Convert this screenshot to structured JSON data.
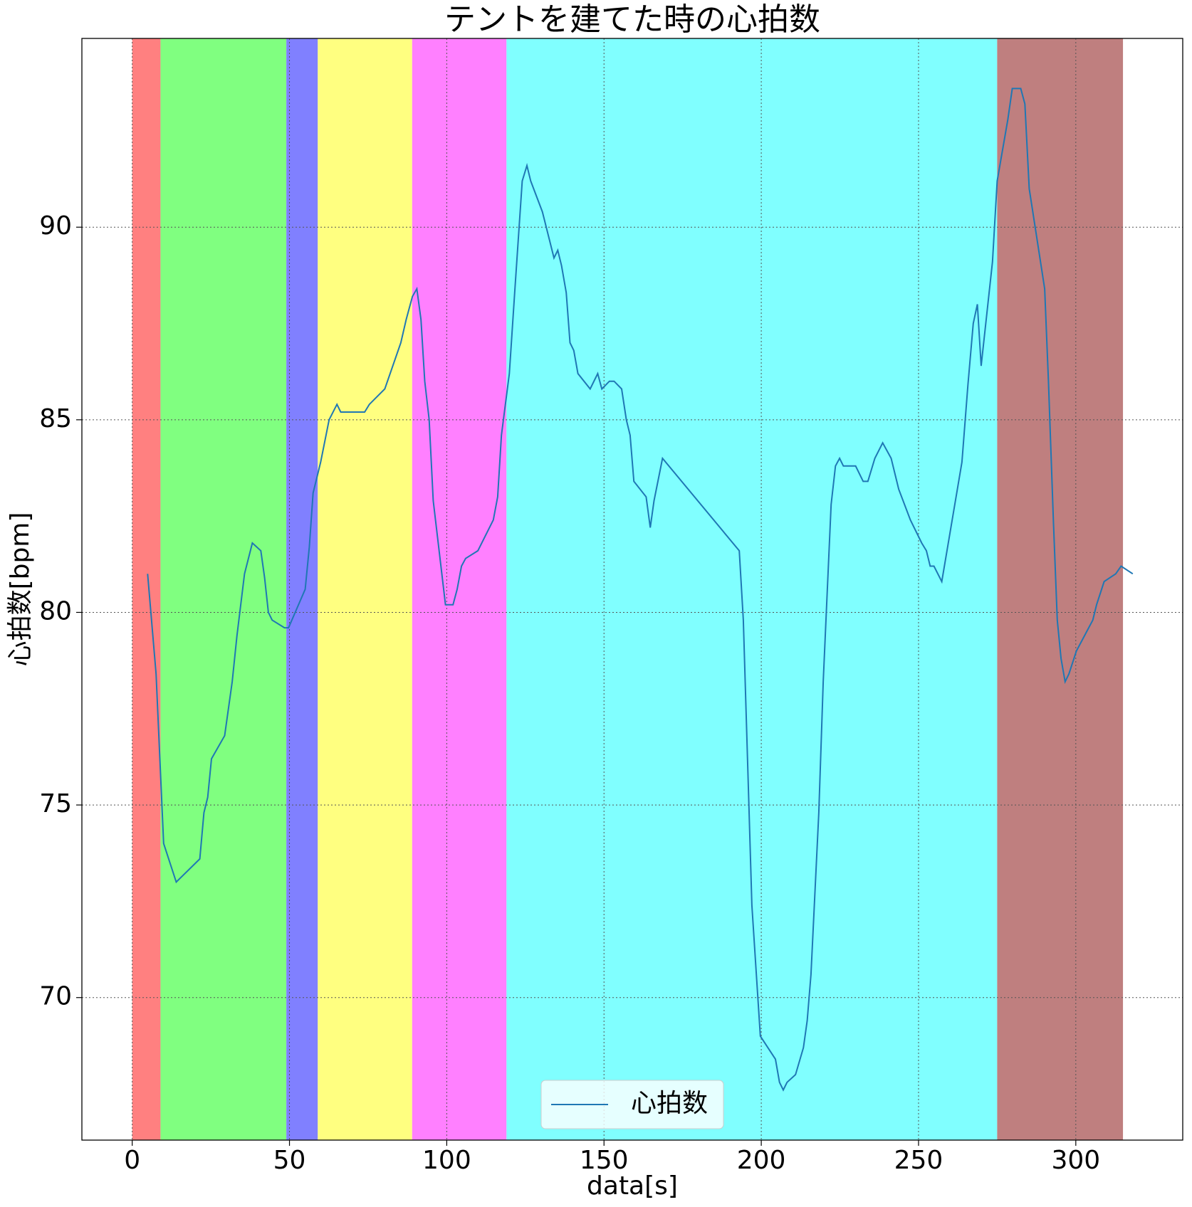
{
  "chart_data": {
    "type": "line",
    "title": "テントを建てた時の心拍数",
    "x_label": "data[s]",
    "y_label": "心拍数[bpm]",
    "xlim": [
      -16,
      334
    ],
    "ylim": [
      66.3,
      94.9
    ],
    "xticks": [
      0,
      50,
      100,
      150,
      200,
      250,
      300
    ],
    "yticks": [
      70,
      75,
      80,
      85,
      90
    ],
    "grid": true,
    "legend": "lower center",
    "spans": [
      {
        "start": 0,
        "end": 9,
        "color": "#ff8080"
      },
      {
        "start": 9,
        "end": 49,
        "color": "#80ff80"
      },
      {
        "start": 49,
        "end": 59,
        "color": "#8080ff"
      },
      {
        "start": 59,
        "end": 89,
        "color": "#ffff80"
      },
      {
        "start": 89,
        "end": 119,
        "color": "#ff80ff"
      },
      {
        "start": 119,
        "end": 275,
        "color": "#80ffff"
      },
      {
        "start": 275,
        "end": 315,
        "color": "#bf7f7f"
      }
    ],
    "x": [
      4.9,
      7.6,
      10,
      14,
      21.5,
      22.8,
      24,
      25.2,
      29.4,
      31.8,
      33.3,
      35.7,
      38.2,
      40.9,
      42.1,
      43.3,
      44.5,
      48.4,
      49.7,
      55,
      56.3,
      57.5,
      59.9,
      62.6,
      65.1,
      66.3,
      73.9,
      75.4,
      80.3,
      85.4,
      87.1,
      89.1,
      90.5,
      91.8,
      93,
      94.4,
      95.7,
      99.6,
      102,
      103.3,
      104.7,
      106,
      109.9,
      114.8,
      116.2,
      117.4,
      119.9,
      121.6,
      124,
      125.5,
      126.7,
      130.4,
      134.1,
      135.3,
      136.5,
      138,
      139.2,
      140.4,
      141.7,
      145.6,
      148,
      149.3,
      151.7,
      153.2,
      155.6,
      157.1,
      158.3,
      159.5,
      163.4,
      164.7,
      165.9,
      168.6,
      193,
      194.3,
      195.7,
      197,
      199.7,
      204.5,
      205.8,
      207,
      208.2,
      210.9,
      213.4,
      214.6,
      215.8,
      218.3,
      219.7,
      222.2,
      223.6,
      224.9,
      226.1,
      230,
      232.4,
      233.9,
      236.1,
      238.6,
      241.3,
      243.7,
      247.4,
      251,
      252.5,
      253.7,
      254.9,
      257.4,
      263.8,
      265.7,
      267.4,
      268.7,
      269.9,
      273.5,
      275,
      278.4,
      279.8,
      282.5,
      283.8,
      285.2,
      290.1,
      291.3,
      292.9,
      294.1,
      295.3,
      296.6,
      297.8,
      300.2,
      305.4,
      306.6,
      309,
      312.7,
      314.4,
      318.1
    ],
    "series": [
      {
        "name": "心拍数",
        "color": "#1f77b4",
        "values": [
          81.0,
          78.4,
          74.0,
          73.0,
          73.6,
          74.8,
          75.2,
          76.2,
          76.8,
          78.2,
          79.4,
          81.0,
          81.8,
          81.6,
          80.9,
          80.0,
          79.8,
          79.6,
          79.6,
          80.6,
          81.7,
          83.1,
          83.9,
          85.0,
          85.4,
          85.2,
          85.2,
          85.4,
          85.8,
          87.0,
          87.6,
          88.2,
          88.4,
          87.6,
          86.0,
          85.0,
          82.9,
          80.2,
          80.2,
          80.6,
          81.2,
          81.4,
          81.6,
          82.4,
          83.0,
          84.6,
          86.2,
          88.3,
          91.2,
          91.6,
          91.2,
          90.4,
          89.2,
          89.4,
          89.0,
          88.3,
          87.0,
          86.8,
          86.2,
          85.8,
          86.2,
          85.8,
          86.0,
          86.0,
          85.8,
          85.0,
          84.6,
          83.4,
          83.0,
          82.2,
          82.9,
          84.0,
          81.6,
          79.8,
          76.0,
          72.4,
          69.0,
          68.4,
          67.8,
          67.6,
          67.8,
          68.0,
          68.7,
          69.4,
          70.6,
          74.8,
          78.2,
          82.8,
          83.8,
          84.0,
          83.8,
          83.8,
          83.4,
          83.4,
          84.0,
          84.4,
          84.0,
          83.2,
          82.4,
          81.8,
          81.6,
          81.2,
          81.2,
          80.8,
          83.9,
          85.9,
          87.5,
          88.0,
          86.4,
          89.1,
          91.2,
          92.8,
          93.6,
          93.6,
          93.2,
          91.0,
          88.4,
          86.0,
          82.3,
          79.8,
          78.8,
          78.2,
          78.4,
          79.0,
          79.8,
          80.2,
          80.8,
          81.0,
          81.2,
          81.0
        ]
      }
    ]
  }
}
